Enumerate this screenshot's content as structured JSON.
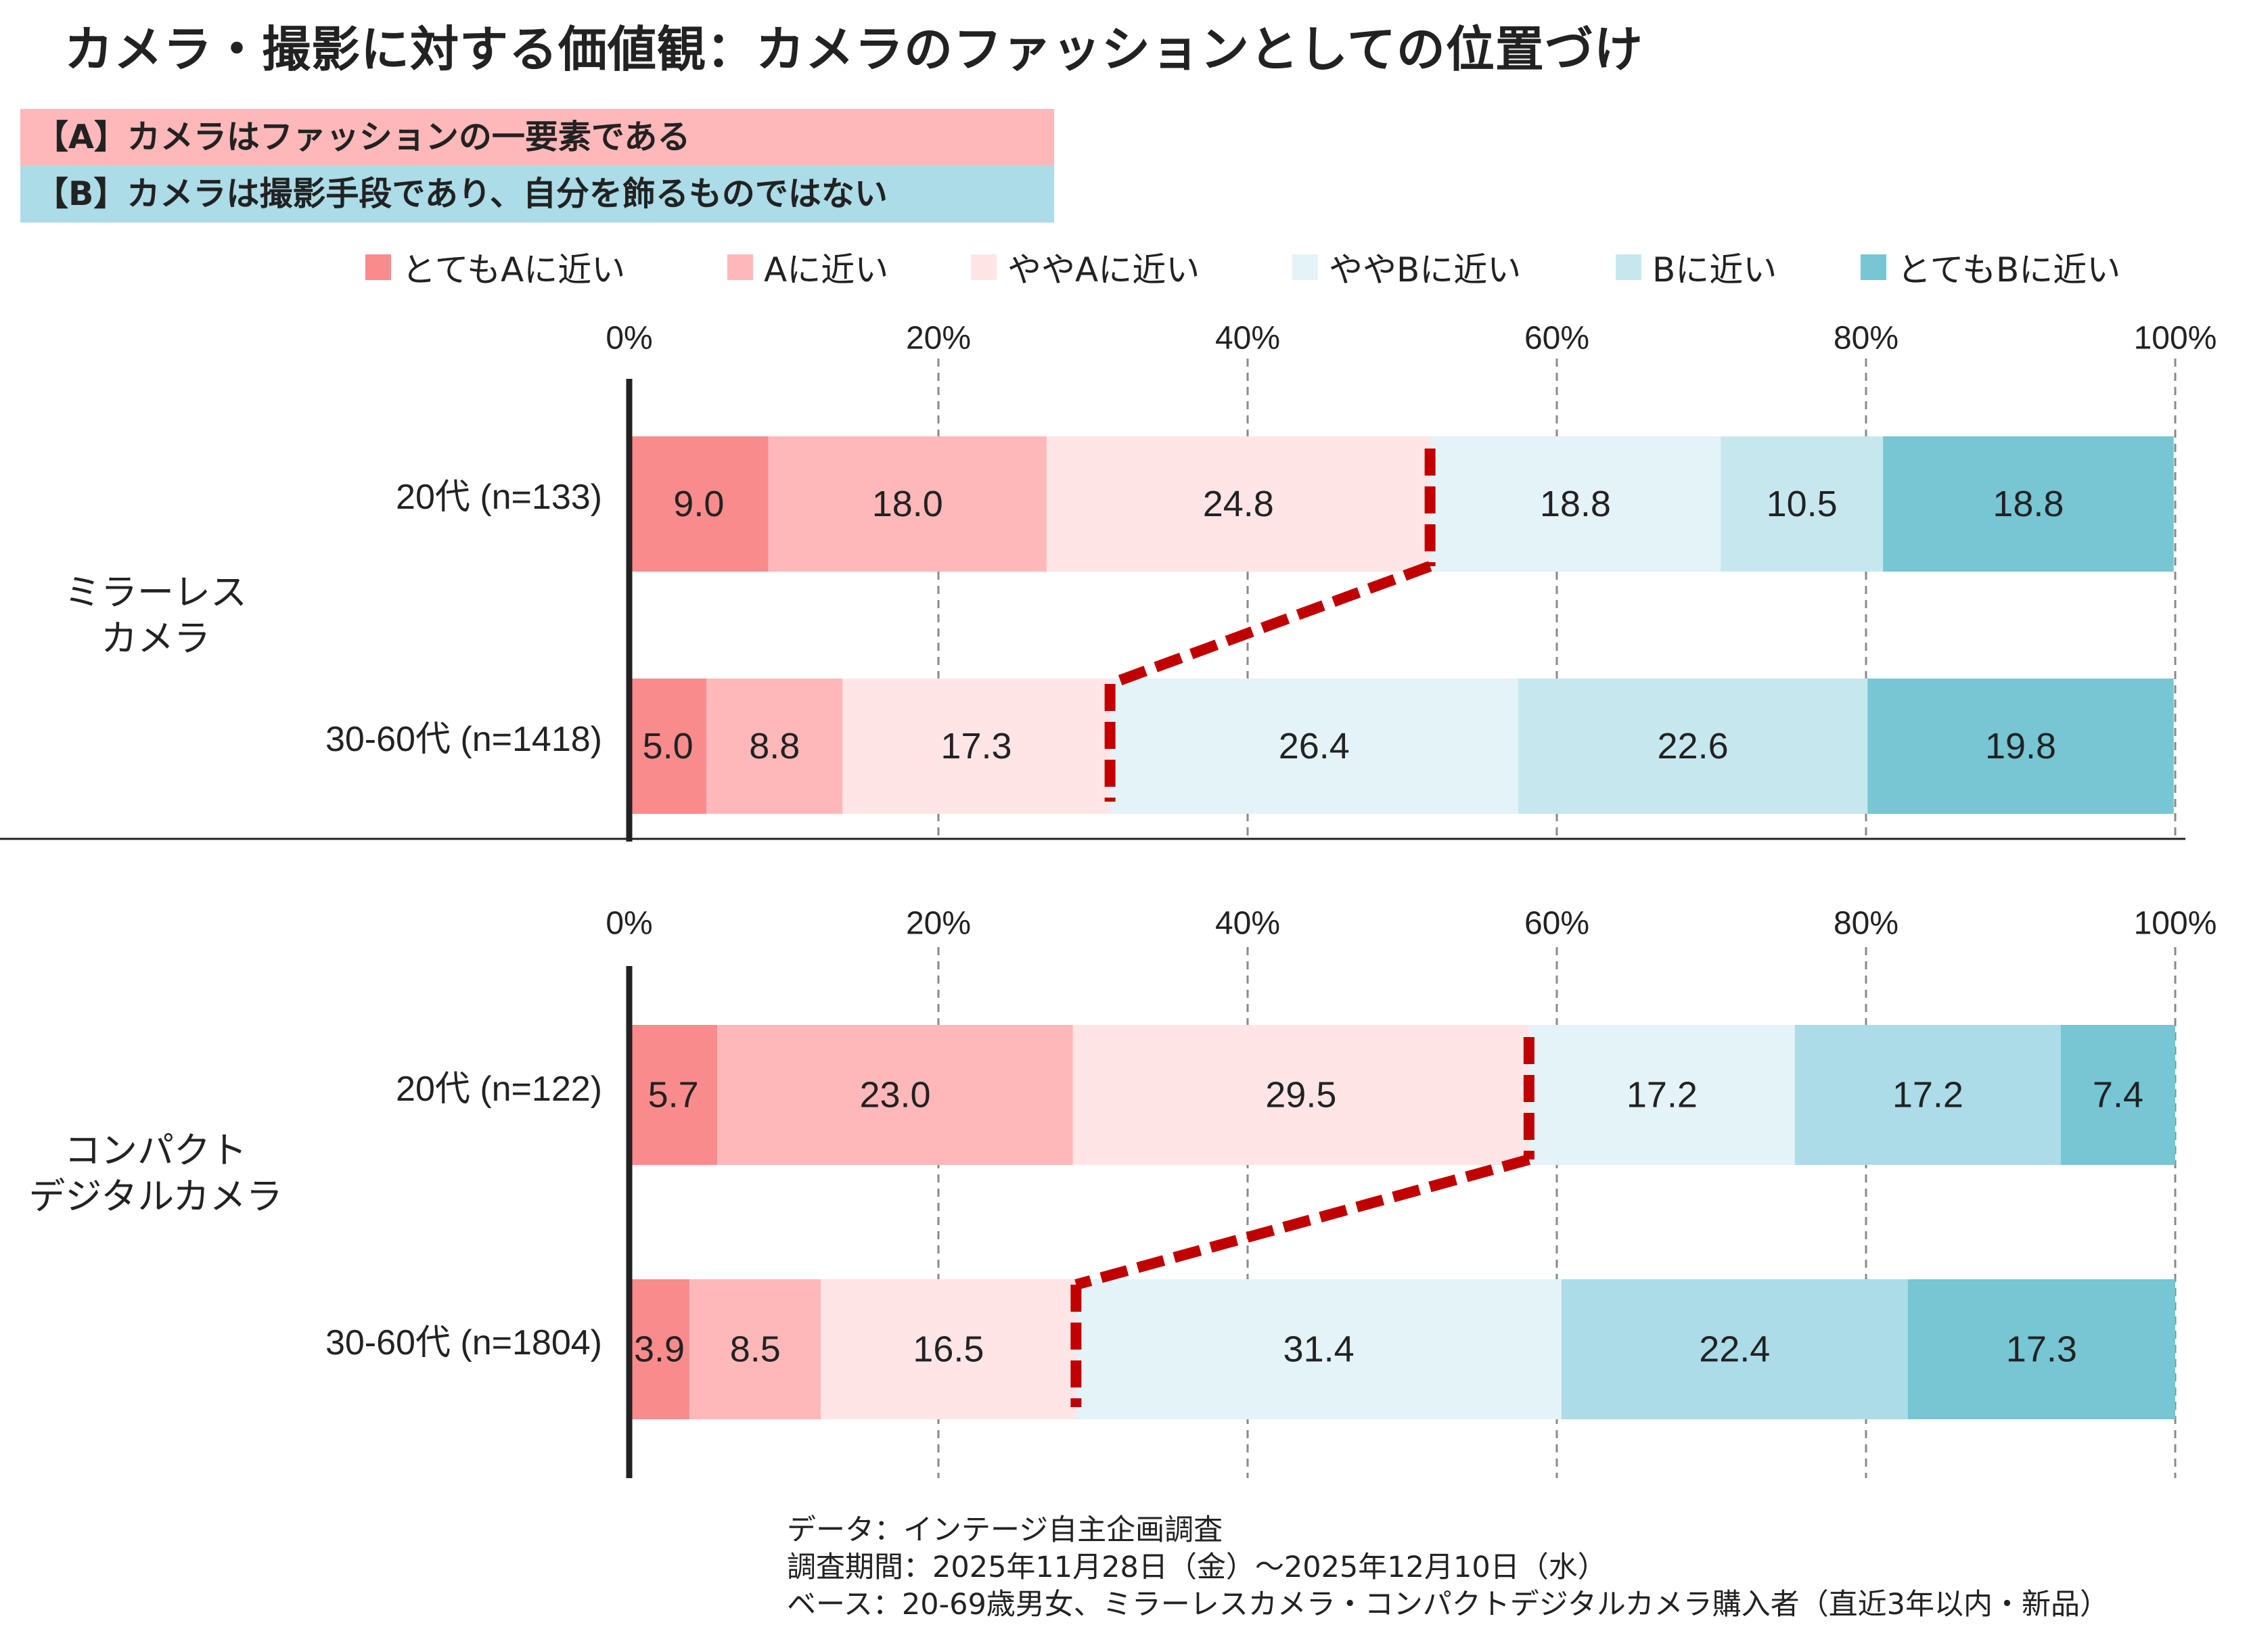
{
  "title": "カメラ・撮影に対する価値観：カメラのファッションとしての位置づけ",
  "definitions": {
    "a": "【A】カメラはファッションの一要素である",
    "b": "【B】カメラは撮影手段であり、自分を飾るものではない"
  },
  "legend": [
    {
      "label": "とてもAに近い",
      "color": "#f98b8d"
    },
    {
      "label": "Aに近い",
      "color": "#ffb8b9"
    },
    {
      "label": "ややAに近い",
      "color": "#ffe5e6"
    },
    {
      "label": "ややBに近い",
      "color": "#e3f3f7"
    },
    {
      "label": "Bに近い",
      "color": "#c7e7ee"
    },
    {
      "label": "とてもBに近い",
      "color": "#76c6d4"
    }
  ],
  "source": [
    "データ：インテージ自主企画調査",
    "調査期間：2025年11月28日（金）～2025年12月10日（水）",
    "ベース：20-69歳男女、ミラーレスカメラ・コンパクトデジタルカメラ購入者（直近3年以内・新品）"
  ],
  "chart_data": [
    {
      "type": "bar",
      "orientation": "horizontal",
      "stacked": "100%",
      "group_label": "ミラーレス\nカメラ",
      "categories": [
        "20代 (n=133)",
        "30-60代 (n=1418)"
      ],
      "x_ticks": [
        "0%",
        "20%",
        "40%",
        "60%",
        "80%",
        "100%"
      ],
      "xlim": [
        0,
        100
      ],
      "grid": "vertical dashed",
      "series": [
        {
          "name": "とてもAに近い",
          "values": [
            9.0,
            5.0
          ],
          "colors": [
            "#f98b8d",
            "#f98b8d"
          ]
        },
        {
          "name": "Aに近い",
          "values": [
            18.0,
            8.8
          ],
          "colors": [
            "#ffb8b9",
            "#ffb8b9"
          ]
        },
        {
          "name": "ややAに近い",
          "values": [
            24.8,
            17.3
          ],
          "colors": [
            "#ffe5e6",
            "#ffe5e6"
          ]
        },
        {
          "name": "ややBに近い",
          "values": [
            18.8,
            26.4
          ],
          "colors": [
            "#e3f3f7",
            "#e3f3f7"
          ]
        },
        {
          "name": "Bに近い",
          "values": [
            10.5,
            22.6
          ],
          "colors": [
            "#c7e7ee",
            "#c7e7ee"
          ]
        },
        {
          "name": "とてもBに近い",
          "values": [
            18.8,
            19.8
          ],
          "colors": [
            "#76c6d4",
            "#76c6d4"
          ]
        }
      ],
      "divider": "A/B boundary connected by red dashed line"
    },
    {
      "type": "bar",
      "orientation": "horizontal",
      "stacked": "100%",
      "group_label": "コンパクト\nデジタルカメラ",
      "categories": [
        "20代 (n=122)",
        "30-60代 (n=1804)"
      ],
      "x_ticks": [
        "0%",
        "20%",
        "40%",
        "60%",
        "80%",
        "100%"
      ],
      "xlim": [
        0,
        100
      ],
      "grid": "vertical dashed",
      "series": [
        {
          "name": "とてもAに近い",
          "values": [
            5.7,
            3.9
          ],
          "colors": [
            "#f98b8d",
            "#f98b8d"
          ]
        },
        {
          "name": "Aに近い",
          "values": [
            23.0,
            8.5
          ],
          "colors": [
            "#ffb8b9",
            "#ffb8b9"
          ]
        },
        {
          "name": "ややAに近い",
          "values": [
            29.5,
            16.5
          ],
          "colors": [
            "#ffe5e6",
            "#ffe5e6"
          ]
        },
        {
          "name": "ややBに近い",
          "values": [
            17.2,
            31.4
          ],
          "colors": [
            "#e3f3f7",
            "#e3f3f7"
          ]
        },
        {
          "name": "Bに近い",
          "values": [
            17.2,
            22.4
          ],
          "colors": [
            "#abdce7",
            "#abdce7"
          ]
        },
        {
          "name": "とてもBに近い",
          "values": [
            7.4,
            17.3
          ],
          "colors": [
            "#76c6d4",
            "#76c6d4"
          ]
        }
      ],
      "divider": "A/B boundary connected by red dashed line",
      "divider_color": "#c00000"
    }
  ]
}
